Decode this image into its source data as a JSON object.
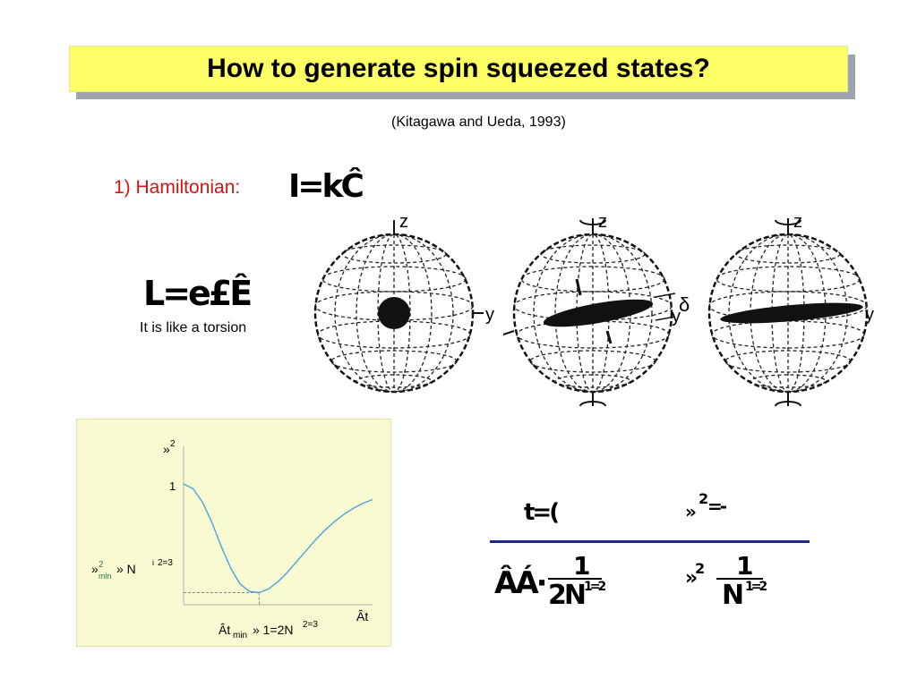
{
  "slide": {
    "title": "How to generate spin squeezed states?",
    "citation": "(Kitagawa and Ueda, 1993)",
    "hamiltonian_label": "1) Hamiltonian:",
    "hamiltonian_formula": "I=kĈ",
    "torsion_formula": "L=e£Ê",
    "torsion_caption": "It is like a torsion"
  },
  "spheres": {
    "axis_z": "z",
    "axis_y": "y",
    "delta": "δ"
  },
  "plot": {
    "y_axis_symbol": "»",
    "y_axis_exp": "2",
    "y_tick_one": "1",
    "min_main": "»",
    "min_exp": "2",
    "min_sub": "min",
    "min_approx": "»   N",
    "min_power_prefix": "i",
    "min_power": "2=3",
    "x_axis_label": "Ât",
    "t_min_main": "Ât",
    "t_min_sub": "min",
    "t_min_approx": "»   1=2N",
    "t_min_power": "2=3"
  },
  "equations": {
    "top_left": "t=(",
    "top_right_main": "»",
    "top_right_exp": "2",
    "top_right_rest": "=-",
    "bottom_left_lhs": "ÂÁ·",
    "bottom_left_num": "1",
    "bottom_left_den": "2N",
    "bottom_left_den_exp": "1=2",
    "bottom_right_lhs": "»",
    "bottom_right_exp": "2",
    "bottom_right_num": "1",
    "bottom_right_den": "N",
    "bottom_right_den_exp": "1=2"
  },
  "chart_data": {
    "type": "line",
    "title": "",
    "xlabel": "Ât",
    "ylabel": "»²",
    "x": [
      0,
      0.05,
      0.1,
      0.15,
      0.2,
      0.25,
      0.3,
      0.35,
      0.4,
      0.45,
      0.5,
      0.55,
      0.6,
      0.65,
      0.7,
      0.75,
      0.8,
      0.85,
      0.9,
      0.95,
      1.0
    ],
    "series": [
      {
        "values": [
          1.0,
          0.96,
          0.85,
          0.68,
          0.48,
          0.3,
          0.17,
          0.11,
          0.1,
          0.13,
          0.19,
          0.27,
          0.36,
          0.45,
          0.54,
          0.62,
          0.69,
          0.75,
          0.8,
          0.84,
          0.87
        ]
      }
    ],
    "ylim": [
      0,
      1.25
    ],
    "xlim": [
      0,
      1.0
    ],
    "annotations": [
      "»²min »  N^(i 2=3)",
      "Âtmin »  1=2N^(2=3)"
    ],
    "grid": false
  }
}
